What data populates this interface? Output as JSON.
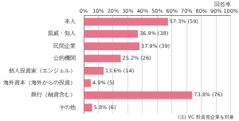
{
  "chart_data": {
    "type": "bar",
    "orientation": "horizontal",
    "xlabel": "回答率",
    "note": "(注) VC 投資先企業を対象",
    "categories": [
      "本人",
      "親戚・知人",
      "民間企業",
      "公的機関",
      "個人投資家（エンジェル）",
      "海外資本（海外からの投資）",
      "銀行（融資含む）",
      "その他"
    ],
    "values": [
      57.3,
      36.9,
      37.9,
      25.2,
      13.6,
      4.9,
      73.8,
      5.8
    ],
    "value_labels": [
      "57.3% (59)",
      "36.9% (38)",
      "37.9% (39)",
      "25.2% (26)",
      "13.6% (14)",
      "4.9% (5)",
      "73.8% (76)",
      "5.8% (6)"
    ],
    "color": "#e8748a",
    "data_labels": true,
    "grid": true,
    "xlim": [
      0,
      100
    ],
    "xticks": [
      {
        "value": 0,
        "label": "0%"
      },
      {
        "value": 10,
        "label": "10%"
      },
      {
        "value": 20,
        "label": "20%"
      },
      {
        "value": 30,
        "label": "30%"
      },
      {
        "value": 40,
        "label": "40%"
      },
      {
        "value": 50,
        "label": "50%"
      },
      {
        "value": 60,
        "label": "60%"
      },
      {
        "value": 70,
        "label": "70%"
      },
      {
        "value": 80,
        "label": "80%"
      },
      {
        "value": 90,
        "label": "90%"
      },
      {
        "value": 100,
        "label": "100%"
      }
    ]
  }
}
